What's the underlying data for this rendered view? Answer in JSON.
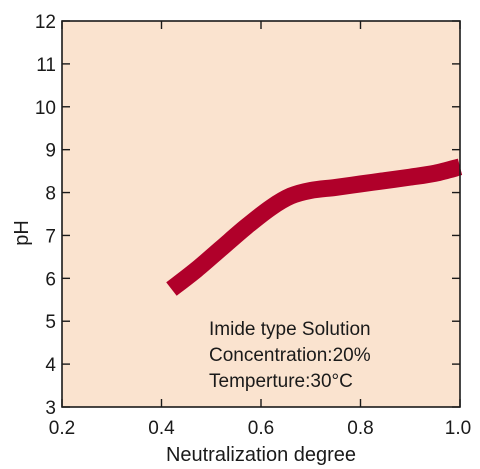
{
  "chart_data": {
    "type": "line",
    "title": "",
    "xlabel": "Neutralization degree",
    "ylabel": "pH",
    "xlim": [
      0.2,
      1.0
    ],
    "ylim": [
      3,
      12
    ],
    "x_ticks": [
      "0.2",
      "0.4",
      "0.6",
      "0.8",
      "1.0"
    ],
    "y_ticks": [
      "3",
      "4",
      "5",
      "6",
      "7",
      "8",
      "9",
      "10",
      "11",
      "12"
    ],
    "grid": false,
    "plot_background": "#fae3cf",
    "series": [
      {
        "color": "#b0002a",
        "x": [
          0.42,
          0.47,
          0.52,
          0.57,
          0.62,
          0.66,
          0.7,
          0.75,
          0.8,
          0.85,
          0.9,
          0.95,
          1.0
        ],
        "y": [
          5.75,
          6.2,
          6.7,
          7.2,
          7.65,
          7.92,
          8.05,
          8.12,
          8.2,
          8.28,
          8.36,
          8.45,
          8.6
        ]
      }
    ],
    "annotations": [
      "Imide type Solution",
      "Concentration:20%",
      "Temperture:30°C"
    ]
  }
}
